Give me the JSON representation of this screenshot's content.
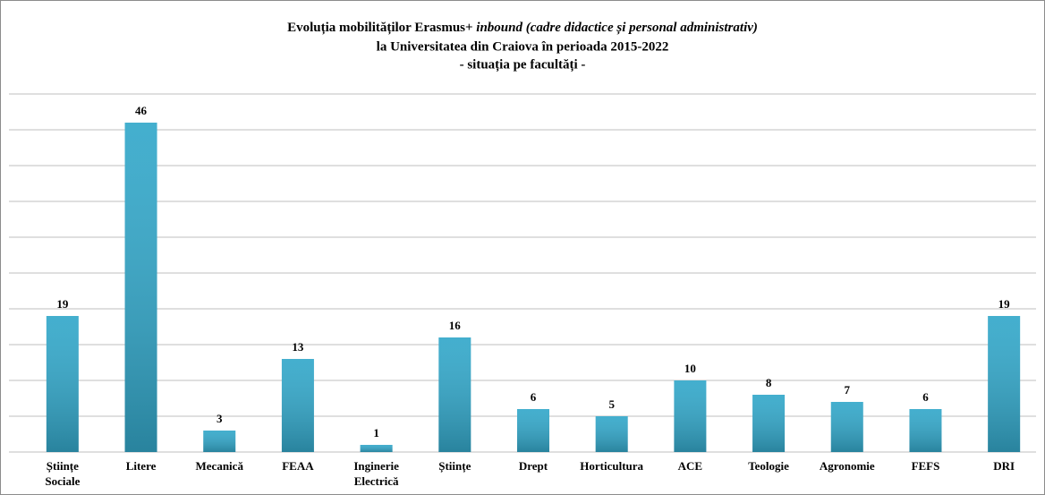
{
  "chart_data": {
    "type": "bar",
    "title": {
      "line1": "Evoluția mobilităților Erasmus+",
      "line1_italic": "inbound (cadre didactice și personal administrativ)",
      "line2": "la Universitatea din Craiova în perioada 2015-2022",
      "line3": "- situația pe facultăți -"
    },
    "categories": [
      "Științe Sociale",
      "Litere",
      "Mecanică",
      "FEAA",
      "Inginerie Electrică",
      "Științe",
      "Drept",
      "Horticultura",
      "ACE",
      "Teologie",
      "Agronomie",
      "FEFS",
      "DRI"
    ],
    "values": [
      19,
      46,
      3,
      13,
      1,
      16,
      6,
      5,
      10,
      8,
      7,
      6,
      19
    ],
    "color": "#34a8ca",
    "ylim": [
      0,
      50
    ],
    "yticks": [
      0,
      5,
      10,
      15,
      20,
      25,
      30,
      35,
      40,
      45,
      50
    ],
    "grid": true
  }
}
